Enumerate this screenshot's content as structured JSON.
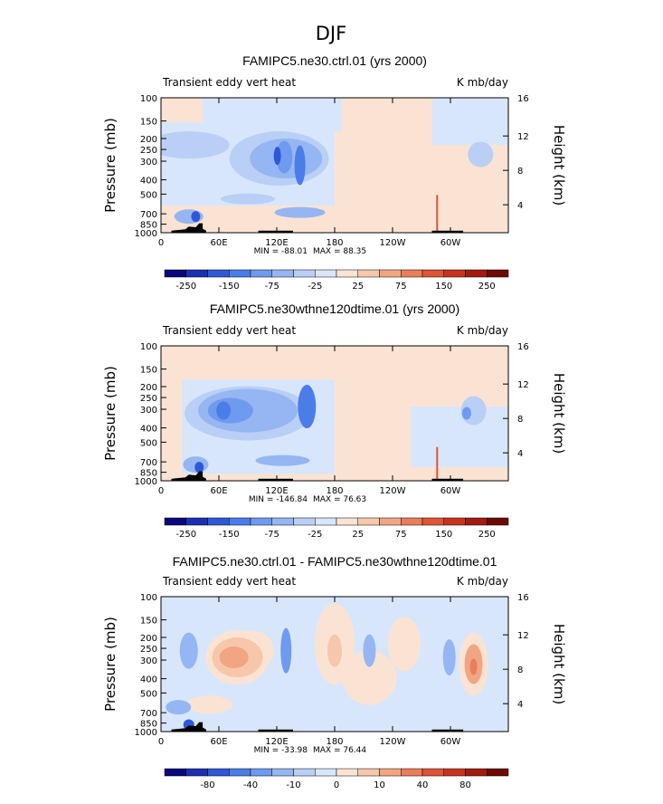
{
  "figure_title": "DJF",
  "chart_data": [
    {
      "type": "heatmap",
      "title": "FAMIPC5.ne30.ctrl.01 (yrs 2000)",
      "left_label": "Transient eddy vert heat",
      "right_label": "K mb/day",
      "ylabel": "Pressure (mb)",
      "ylabel_right": "Height (km)",
      "x_ticks": [
        "0",
        "60E",
        "120E",
        "180",
        "120W",
        "60W"
      ],
      "y_ticks": [
        "100",
        "150",
        "200",
        "250",
        "300",
        "400",
        "500",
        "700",
        "850",
        "1000"
      ],
      "y2_ticks": [
        "16",
        "12",
        "8",
        "4"
      ],
      "min_label": "MIN = -88.01",
      "max_label": "MAX =  88.35",
      "colorbar": {
        "labels": [
          "-250",
          "-150",
          "-75",
          "-25",
          "25",
          "75",
          "150",
          "250"
        ],
        "colors": [
          "#08087a",
          "#1b2fb0",
          "#2e58d8",
          "#4b7de8",
          "#6f9bee",
          "#95b6f2",
          "#b9cff6",
          "#d8e6fb",
          "#fbe3d3",
          "#f7c7ab",
          "#f2a582",
          "#ea7d5a",
          "#df5436",
          "#c8321d",
          "#a11b10",
          "#6e0a05"
        ]
      },
      "features": [
        "negative (blue) eddy heat flux over 100E-150E in upper troposphere",
        "near-neutral elsewhere"
      ]
    },
    {
      "type": "heatmap",
      "title": "FAMIPC5.ne30wthne120dtime.01 (yrs 2000)",
      "left_label": "Transient eddy vert heat",
      "right_label": "K mb/day",
      "ylabel": "Pressure (mb)",
      "ylabel_right": "Height (km)",
      "x_ticks": [
        "0",
        "60E",
        "120E",
        "180",
        "120W",
        "60W"
      ],
      "y_ticks": [
        "100",
        "150",
        "200",
        "250",
        "300",
        "400",
        "500",
        "700",
        "850",
        "1000"
      ],
      "y2_ticks": [
        "16",
        "12",
        "8",
        "4"
      ],
      "min_label": "MIN = -146.84",
      "max_label": "MAX =  76.63",
      "colorbar": {
        "labels": [
          "-250",
          "-150",
          "-75",
          "-25",
          "25",
          "75",
          "150",
          "250"
        ],
        "colors": [
          "#08087a",
          "#1b2fb0",
          "#2e58d8",
          "#4b7de8",
          "#6f9bee",
          "#95b6f2",
          "#b9cff6",
          "#d8e6fb",
          "#fbe3d3",
          "#f7c7ab",
          "#f2a582",
          "#ea7d5a",
          "#df5436",
          "#c8321d",
          "#a11b10",
          "#6e0a05"
        ]
      },
      "features": [
        "negative (blue) eddy heat flux over 50E-160E at 200-500 mb",
        "weak positive (orange) elsewhere"
      ]
    },
    {
      "type": "heatmap",
      "title": "FAMIPC5.ne30.ctrl.01 - FAMIPC5.ne30wthne120dtime.01",
      "left_label": "Transient eddy vert heat",
      "right_label": "K mb/day",
      "ylabel": "Pressure (mb)",
      "ylabel_right": "Height (km)",
      "x_ticks": [
        "0",
        "60E",
        "120E",
        "180",
        "120W",
        "60W"
      ],
      "y_ticks": [
        "100",
        "150",
        "200",
        "250",
        "300",
        "400",
        "500",
        "700",
        "850",
        "1000"
      ],
      "y2_ticks": [
        "16",
        "12",
        "8",
        "4"
      ],
      "min_label": "MIN = -33.98",
      "max_label": "MAX =  76.44",
      "colorbar": {
        "labels": [
          "-80",
          "-40",
          "-10",
          "0",
          "10",
          "40",
          "80"
        ],
        "colors": [
          "#08087a",
          "#1b2fb0",
          "#2e58d8",
          "#4b7de8",
          "#6f9bee",
          "#95b6f2",
          "#b9cff6",
          "#d8e6fb",
          "#fbe3d3",
          "#f7c7ab",
          "#f2a582",
          "#ea7d5a",
          "#df5436",
          "#c8321d",
          "#a11b10",
          "#6e0a05"
        ]
      },
      "features": [
        "positive (red) difference around 40E-80E and 60W",
        "negative (blue) bands near 20E, 120E, 150W"
      ]
    }
  ]
}
